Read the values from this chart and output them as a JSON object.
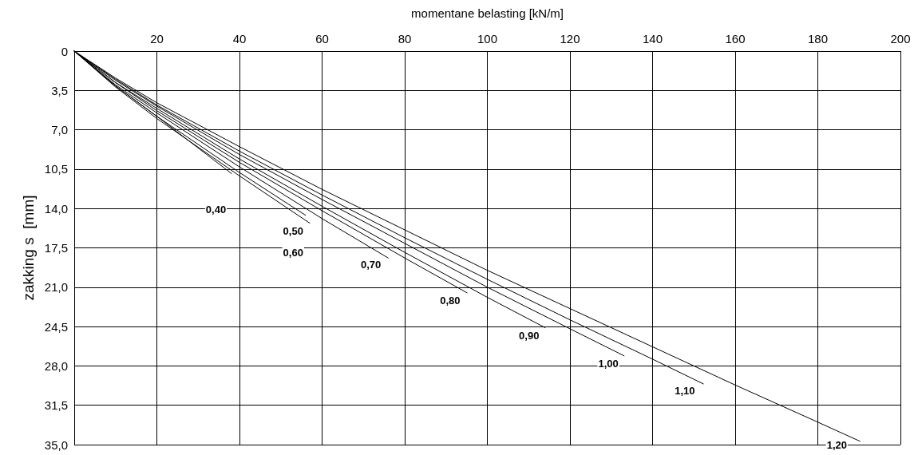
{
  "chart_data": {
    "type": "line",
    "xlabel": "momentane belasting [kN/m]",
    "ylabel": "zakking s  [mm]",
    "xlim": [
      0,
      200
    ],
    "xticks": [
      {
        "value": 0,
        "label": null
      },
      20,
      40,
      60,
      80,
      100,
      120,
      140,
      160,
      180,
      200
    ],
    "ylim": [
      35,
      0
    ],
    "yticks": [
      0,
      {
        "value": 3.5,
        "label": "3,5"
      },
      {
        "value": 7,
        "label": "7,0"
      },
      {
        "value": 10.5,
        "label": "10,5"
      },
      {
        "value": 14,
        "label": "14,0"
      },
      {
        "value": 17.5,
        "label": "17,5"
      },
      {
        "value": 21,
        "label": "21,0"
      },
      {
        "value": 24.5,
        "label": "24,5"
      },
      {
        "value": 28,
        "label": "28,0"
      },
      {
        "value": 31.5,
        "label": "31,5"
      },
      {
        "value": 35,
        "label": "35,0"
      }
    ],
    "grid": true,
    "marker": "none",
    "line_style": "solid",
    "series": [
      {
        "color": "#000000",
        "x": [
          0,
          10,
          20,
          38.1
        ],
        "values": [
          0,
          3.1,
          5.8,
          10.9
        ]
      },
      {
        "color": "#000000",
        "x": [
          0,
          10,
          20,
          40,
          57
        ],
        "values": [
          0,
          3.2,
          6.0,
          11.1,
          15.3
        ]
      },
      {
        "color": "#000000",
        "x": [
          0,
          10,
          20,
          40,
          56
        ],
        "values": [
          0,
          3.1,
          5.8,
          10.8,
          14.6
        ]
      },
      {
        "color": "#000000",
        "x": [
          0,
          10,
          20,
          40,
          60,
          76
        ],
        "values": [
          0,
          3.0,
          5.5,
          10.3,
          14.9,
          18.4
        ]
      },
      {
        "color": "#000000",
        "x": [
          0,
          10,
          20,
          40,
          60,
          80,
          95.1
        ],
        "values": [
          0,
          2.8,
          5.3,
          9.9,
          14.2,
          18.4,
          21.5
        ]
      },
      {
        "color": "#000000",
        "x": [
          0,
          10,
          20,
          40,
          60,
          80,
          100,
          114
        ],
        "values": [
          0,
          2.8,
          5.1,
          9.6,
          13.8,
          17.9,
          21.9,
          24.6
        ]
      },
      {
        "color": "#000000",
        "x": [
          0,
          10,
          20,
          40,
          60,
          80,
          100,
          120,
          133.1
        ],
        "values": [
          0,
          2.6,
          4.9,
          9.2,
          13.2,
          17.1,
          21.0,
          24.7,
          27.1
        ]
      },
      {
        "color": "#000000",
        "x": [
          0,
          10,
          20,
          40,
          60,
          80,
          100,
          120,
          140,
          152.3
        ],
        "values": [
          0,
          2.5,
          4.8,
          8.9,
          12.8,
          16.6,
          20.3,
          23.9,
          27.4,
          29.6
        ]
      },
      {
        "color": "#000000",
        "x": [
          0,
          10,
          20,
          40,
          60,
          80,
          100,
          120,
          140,
          160,
          180,
          190.2
        ],
        "values": [
          0,
          2.4,
          4.6,
          8.5,
          12.3,
          15.9,
          19.5,
          22.9,
          26.3,
          29.7,
          33.0,
          34.7
        ]
      }
    ],
    "annotations": [
      {
        "text": "0,40",
        "x": 34.3,
        "y": 14.1
      },
      {
        "text": "0,50",
        "x": 53,
        "y": 16.0
      },
      {
        "text": "0,60",
        "x": 53,
        "y": 17.9
      },
      {
        "text": "0,70",
        "x": 71.8,
        "y": 19.0
      },
      {
        "text": "0,80",
        "x": 91,
        "y": 22.2
      },
      {
        "text": "0,90",
        "x": 110.1,
        "y": 25.3
      },
      {
        "text": "1,00",
        "x": 129.3,
        "y": 27.8
      },
      {
        "text": "1,10",
        "x": 147.8,
        "y": 30.2
      },
      {
        "text": "1,20",
        "x": 184.6,
        "y": 35.0
      }
    ]
  }
}
